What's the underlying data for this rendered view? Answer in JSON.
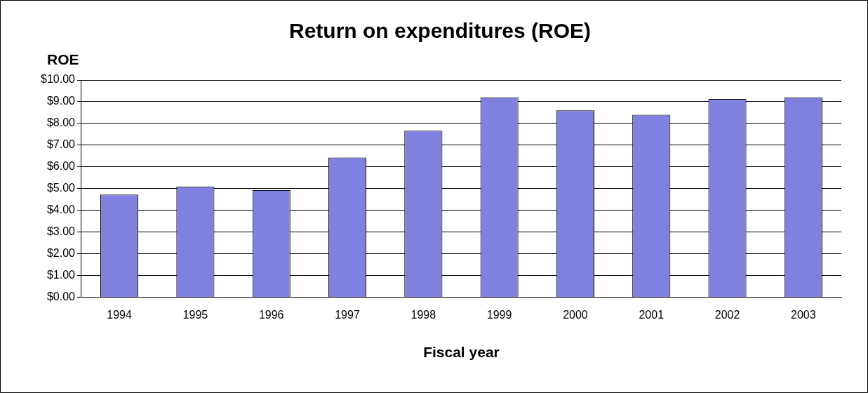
{
  "chart_data": {
    "type": "bar",
    "title": "Return on expenditures (ROE)",
    "xlabel": "Fiscal year",
    "ylabel": "ROE",
    "categories": [
      "1994",
      "1995",
      "1996",
      "1997",
      "1998",
      "1999",
      "2000",
      "2001",
      "2002",
      "2003"
    ],
    "values": [
      4.73,
      5.1,
      4.93,
      6.43,
      7.67,
      9.2,
      8.6,
      8.4,
      9.13,
      9.2
    ],
    "color": "#8080e0",
    "ylim": [
      0,
      10
    ],
    "yticks": [
      {
        "value": 0,
        "label": "$0.00"
      },
      {
        "value": 1,
        "label": "$1.00"
      },
      {
        "value": 2,
        "label": "$2.00"
      },
      {
        "value": 3,
        "label": "$3.00"
      },
      {
        "value": 4,
        "label": "$4.00"
      },
      {
        "value": 5,
        "label": "$5.00"
      },
      {
        "value": 6,
        "label": "$6.00"
      },
      {
        "value": 7,
        "label": "$7.00"
      },
      {
        "value": 8,
        "label": "$8.00"
      },
      {
        "value": 9,
        "label": "$9.00"
      },
      {
        "value": 10,
        "label": "$10.00"
      }
    ],
    "grid": "y",
    "legend": false
  }
}
